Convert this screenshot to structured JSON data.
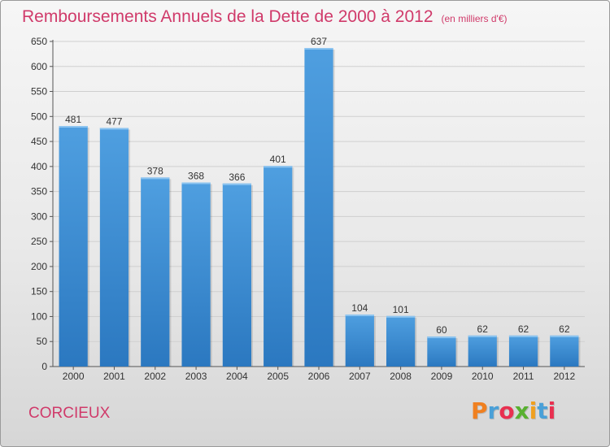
{
  "header": {
    "title": "Remboursements Annuels de la Dette de 2000 à 2012",
    "unit": "(en milliers d'€)"
  },
  "footer": {
    "commune": "CORCIEUX",
    "logo": "Proxiti",
    "logo_colors": [
      "#f08020",
      "#4aa0d8",
      "#e83050",
      "#58b030",
      "#f0a020",
      "#4aa0d8",
      "#e83050"
    ]
  },
  "colors": {
    "bar": "#4f9fe0",
    "bar_dark": "#2b78c0",
    "title": "#d03a6a",
    "grid": "#cfcfcf"
  },
  "chart_data": {
    "type": "bar",
    "categories": [
      "2000",
      "2001",
      "2002",
      "2003",
      "2004",
      "2005",
      "2006",
      "2007",
      "2008",
      "2009",
      "2010",
      "2011",
      "2012"
    ],
    "values": [
      481,
      477,
      378,
      368,
      366,
      401,
      637,
      104,
      101,
      60,
      62,
      62,
      62
    ],
    "ylim": [
      0,
      650
    ],
    "yticks": [
      0,
      50,
      100,
      150,
      200,
      250,
      300,
      350,
      400,
      450,
      500,
      550,
      600,
      650
    ],
    "grid": true,
    "data_labels": true
  }
}
